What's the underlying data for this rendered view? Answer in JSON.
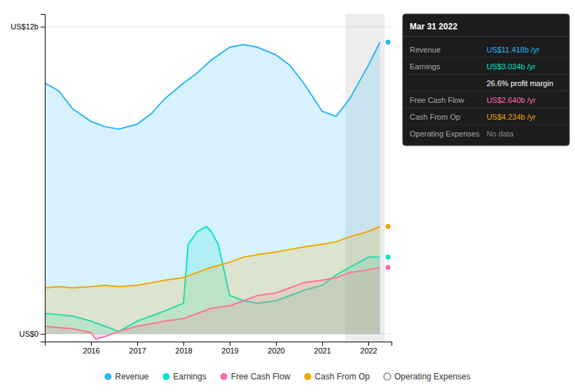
{
  "chart_data": {
    "type": "area",
    "xlim": [
      2015.0,
      2022.5
    ],
    "ylim": [
      -0.3,
      12.5
    ],
    "xticks": [
      2016,
      2017,
      2018,
      2019,
      2020,
      2021,
      2022
    ],
    "yticks": [
      {
        "value": 0,
        "label": "US$0"
      },
      {
        "value": 12,
        "label": "US$12b"
      }
    ],
    "grid": "y",
    "highlight": [
      2021.5,
      2022.35
    ],
    "series": [
      {
        "name": "Revenue",
        "color": "#29b6f6",
        "x": [
          2015.0,
          2015.3,
          2015.6,
          2016.0,
          2016.3,
          2016.6,
          2017.0,
          2017.3,
          2017.6,
          2018.0,
          2018.3,
          2018.6,
          2019.0,
          2019.3,
          2019.6,
          2020.0,
          2020.3,
          2020.6,
          2021.0,
          2021.3,
          2021.6,
          2022.0,
          2022.25
        ],
        "values": [
          9.8,
          9.5,
          8.8,
          8.3,
          8.1,
          8.0,
          8.2,
          8.6,
          9.2,
          9.8,
          10.2,
          10.7,
          11.2,
          11.3,
          11.2,
          10.9,
          10.5,
          9.8,
          8.7,
          8.5,
          9.2,
          10.5,
          11.4
        ]
      },
      {
        "name": "Earnings",
        "color": "#00e5cc",
        "x": [
          2015.0,
          2015.3,
          2015.6,
          2016.0,
          2016.3,
          2016.6,
          2017.0,
          2017.3,
          2017.6,
          2018.0,
          2018.1,
          2018.3,
          2018.5,
          2018.6,
          2018.75,
          2019.0,
          2019.3,
          2019.6,
          2020.0,
          2020.3,
          2020.6,
          2021.0,
          2021.3,
          2021.6,
          2022.0,
          2022.25
        ],
        "values": [
          0.8,
          0.75,
          0.7,
          0.5,
          0.3,
          0.1,
          0.5,
          0.7,
          0.9,
          1.2,
          3.5,
          4.0,
          4.2,
          4.0,
          3.5,
          1.5,
          1.3,
          1.2,
          1.3,
          1.5,
          1.7,
          1.9,
          2.3,
          2.6,
          3.0,
          3.0
        ]
      },
      {
        "name": "Free Cash Flow",
        "color": "#ff69b4",
        "x": [
          2015.0,
          2015.3,
          2015.6,
          2016.0,
          2016.1,
          2016.3,
          2016.6,
          2017.0,
          2017.3,
          2017.6,
          2018.0,
          2018.3,
          2018.6,
          2019.0,
          2019.3,
          2019.6,
          2020.0,
          2020.3,
          2020.6,
          2021.0,
          2021.3,
          2021.6,
          2022.0,
          2022.25
        ],
        "values": [
          0.3,
          0.25,
          0.2,
          0.05,
          -0.2,
          -0.1,
          0.1,
          0.3,
          0.4,
          0.5,
          0.6,
          0.8,
          1.0,
          1.1,
          1.3,
          1.5,
          1.6,
          1.8,
          2.0,
          2.1,
          2.2,
          2.4,
          2.5,
          2.6
        ]
      },
      {
        "name": "Cash From Op",
        "color": "#f0a500",
        "x": [
          2015.0,
          2015.3,
          2015.6,
          2016.0,
          2016.3,
          2016.6,
          2017.0,
          2017.3,
          2017.6,
          2018.0,
          2018.3,
          2018.6,
          2019.0,
          2019.3,
          2019.6,
          2020.0,
          2020.3,
          2020.6,
          2021.0,
          2021.3,
          2021.6,
          2022.0,
          2022.25
        ],
        "values": [
          1.8,
          1.85,
          1.8,
          1.85,
          1.9,
          1.85,
          1.9,
          2.0,
          2.1,
          2.2,
          2.4,
          2.6,
          2.8,
          3.0,
          3.1,
          3.2,
          3.3,
          3.4,
          3.5,
          3.6,
          3.8,
          4.0,
          4.2
        ]
      },
      {
        "name": "Operating Expenses",
        "color": "#888888",
        "marker": "hollow",
        "x": [],
        "values": []
      }
    ],
    "annotations": {
      "title": "Mar 31 2022",
      "rows": [
        {
          "label": "Revenue",
          "value": "US$11.418b /yr",
          "color": "#29b6f6"
        },
        {
          "label": "Earnings",
          "value": "US$3.034b /yr",
          "color": "#00e5cc"
        },
        {
          "value": "26.6% profit margin",
          "color": "#ffffff"
        },
        {
          "label": "Free Cash Flow",
          "value": "US$2.640b /yr",
          "color": "#ff69b4"
        },
        {
          "label": "Cash From Op",
          "value": "US$4.234b /yr",
          "color": "#f0a500"
        },
        {
          "label": "Operating Expenses",
          "value": "No data",
          "color": "#888888"
        }
      ]
    }
  }
}
